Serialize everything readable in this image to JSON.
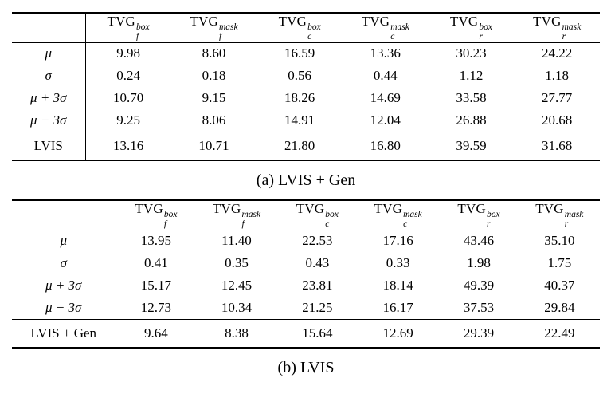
{
  "colors": {
    "text": "#000000",
    "rule": "#000000",
    "background": "#ffffff"
  },
  "tables": [
    {
      "id": "a",
      "caption": "(a) LVIS + Gen",
      "columns": [
        {
          "base": "TVG",
          "sup": "box",
          "sub": "f"
        },
        {
          "base": "TVG",
          "sup": "mask",
          "sub": "f"
        },
        {
          "base": "TVG",
          "sup": "box",
          "sub": "c"
        },
        {
          "base": "TVG",
          "sup": "mask",
          "sub": "c"
        },
        {
          "base": "TVG",
          "sup": "box",
          "sub": "r"
        },
        {
          "base": "TVG",
          "sup": "mask",
          "sub": "r"
        }
      ],
      "rows": [
        {
          "label": "μ",
          "values": [
            "9.98",
            "8.60",
            "16.59",
            "13.36",
            "30.23",
            "24.22"
          ]
        },
        {
          "label": "σ",
          "values": [
            "0.24",
            "0.18",
            "0.56",
            "0.44",
            "1.12",
            "1.18"
          ]
        },
        {
          "label": "μ + 3σ",
          "values": [
            "10.70",
            "9.15",
            "18.26",
            "14.69",
            "33.58",
            "27.77"
          ]
        },
        {
          "label": "μ − 3σ",
          "values": [
            "9.25",
            "8.06",
            "14.91",
            "12.04",
            "26.88",
            "20.68"
          ]
        }
      ],
      "footer": {
        "label": "LVIS",
        "values": [
          "13.16",
          "10.71",
          "21.80",
          "16.80",
          "39.59",
          "31.68"
        ]
      }
    },
    {
      "id": "b",
      "caption": "(b) LVIS",
      "columns": [
        {
          "base": "TVG",
          "sup": "box",
          "sub": "f"
        },
        {
          "base": "TVG",
          "sup": "mask",
          "sub": "f"
        },
        {
          "base": "TVG",
          "sup": "box",
          "sub": "c"
        },
        {
          "base": "TVG",
          "sup": "mask",
          "sub": "c"
        },
        {
          "base": "TVG",
          "sup": "box",
          "sub": "r"
        },
        {
          "base": "TVG",
          "sup": "mask",
          "sub": "r"
        }
      ],
      "rows": [
        {
          "label": "μ",
          "values": [
            "13.95",
            "11.40",
            "22.53",
            "17.16",
            "43.46",
            "35.10"
          ]
        },
        {
          "label": "σ",
          "values": [
            "0.41",
            "0.35",
            "0.43",
            "0.33",
            "1.98",
            "1.75"
          ]
        },
        {
          "label": "μ + 3σ",
          "values": [
            "15.17",
            "12.45",
            "23.81",
            "18.14",
            "49.39",
            "40.37"
          ]
        },
        {
          "label": "μ − 3σ",
          "values": [
            "12.73",
            "10.34",
            "21.25",
            "16.17",
            "37.53",
            "29.84"
          ]
        }
      ],
      "footer": {
        "label": "LVIS + Gen",
        "values": [
          "9.64",
          "8.38",
          "15.64",
          "12.69",
          "29.39",
          "22.49"
        ]
      }
    }
  ]
}
